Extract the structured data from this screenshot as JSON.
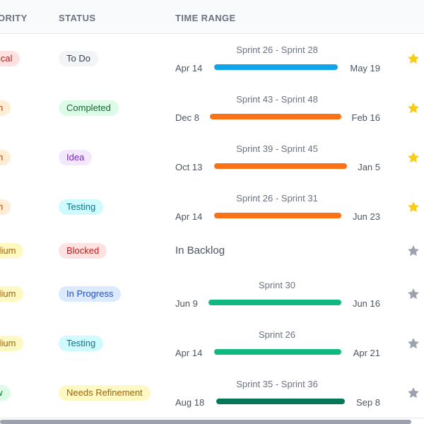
{
  "header": {
    "priority": "ORITY",
    "status": "STATUS",
    "time_range": "TIME RANGE"
  },
  "rows": [
    {
      "priority": "ritical",
      "status": "To Do",
      "sprint": "Sprint 26 - Sprint 28",
      "start": "Apr 14",
      "end": "May 19",
      "bar": "#0ea5e9",
      "starred": true
    },
    {
      "priority": "igh",
      "status": "Completed",
      "sprint": "Sprint 43 - Sprint 48",
      "start": "Dec 8",
      "end": "Feb 16",
      "bar": "#f97316",
      "starred": true
    },
    {
      "priority": "igh",
      "status": "Idea",
      "sprint": "Sprint 39 - Sprint 45",
      "start": "Oct 13",
      "end": "Jan 5",
      "bar": "#f97316",
      "starred": true
    },
    {
      "priority": "igh",
      "status": "Testing",
      "sprint": "Sprint 26 - Sprint 31",
      "start": "Apr 14",
      "end": "Jun 23",
      "bar": "#f97316",
      "starred": true
    },
    {
      "priority": "edium",
      "status": "Blocked",
      "backlog": "In Backlog",
      "starred": false
    },
    {
      "priority": "edium",
      "status": "In Progress",
      "sprint": "Sprint 30",
      "start": "Jun 9",
      "end": "Jun 16",
      "bar": "#10b981",
      "starred": false
    },
    {
      "priority": "edium",
      "status": "Testing",
      "sprint": "Sprint 26",
      "start": "Apr 14",
      "end": "Apr 21",
      "bar": "#10b981",
      "starred": false
    },
    {
      "priority": "ow",
      "status": "Needs Refinement",
      "sprint": "Sprint 35 - Sprint 36",
      "start": "Aug 18",
      "end": "Sep 8",
      "bar": "#047857",
      "starred": false
    }
  ],
  "colors": {
    "priority": {
      "ritical": [
        "#fee2e2",
        "#b91c1c"
      ],
      "igh": [
        "#ffedd5",
        "#c2410c"
      ],
      "edium": [
        "#fef9c3",
        "#a16207"
      ],
      "ow": [
        "#dcfce7",
        "#15803d"
      ]
    },
    "status": {
      "To Do": [
        "#f3f4f6",
        "#374151"
      ],
      "Completed": [
        "#dcfce7",
        "#166534"
      ],
      "Idea": [
        "#f3e8ff",
        "#7e22ce"
      ],
      "Testing": [
        "#cffafe",
        "#0e7490"
      ],
      "Blocked": [
        "#fee2e2",
        "#b91c1c"
      ],
      "In Progress": [
        "#dbeafe",
        "#1d4ed8"
      ],
      "Needs Refinement": [
        "#fef9c3",
        "#a16207"
      ]
    },
    "star_on": "#facc15",
    "star_off": "#9ca3af"
  }
}
